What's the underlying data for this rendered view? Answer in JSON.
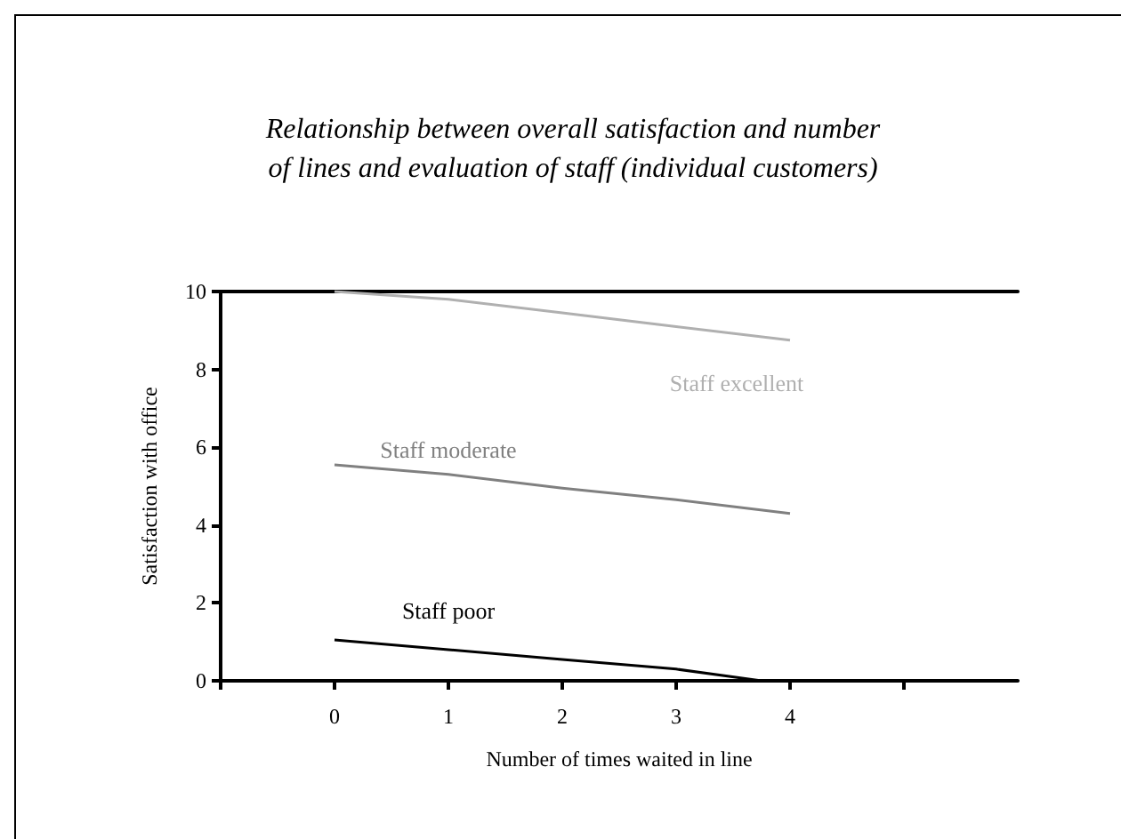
{
  "chart_data": {
    "type": "line",
    "title": "Relationship between overall satisfaction and number\nof lines and evaluation of staff (individual customers)",
    "xlabel": "Number of times waited in line",
    "ylabel": "Satisfaction with office",
    "xlim": [
      -1,
      6
    ],
    "xticks": [
      {
        "value": -1,
        "label": null
      },
      0,
      1,
      2,
      3,
      4,
      {
        "value": 5,
        "label": null
      }
    ],
    "ylim": [
      0,
      10
    ],
    "yticks": [
      0,
      2,
      4,
      6,
      8,
      10
    ],
    "grid": false,
    "legend": false,
    "marker": "none",
    "line_style": "solid",
    "series": [
      {
        "name": "Staff excellent",
        "color": "#b0b0b0",
        "x": [
          0,
          1,
          2,
          3,
          4
        ],
        "values": [
          10,
          9.8,
          9.45,
          9.1,
          8.75
        ]
      },
      {
        "name": "Staff moderate",
        "color": "#808080",
        "x": [
          0,
          1,
          2,
          3,
          4
        ],
        "values": [
          5.55,
          5.3,
          4.95,
          4.65,
          4.3
        ]
      },
      {
        "name": "Staff poor",
        "color": "#000000",
        "x": [
          0,
          1,
          2,
          3,
          3.75
        ],
        "values": [
          1.05,
          0.8,
          0.55,
          0.3,
          0
        ]
      }
    ]
  }
}
